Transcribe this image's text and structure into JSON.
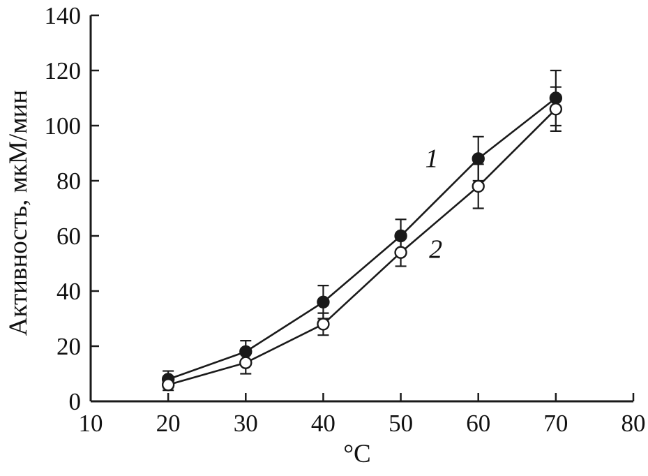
{
  "chart_data": {
    "type": "line",
    "title": "",
    "xlabel": "°C",
    "ylabel": "Активность, мкМ/мин",
    "xlim": [
      10,
      80
    ],
    "ylim": [
      0,
      140
    ],
    "xticks": [
      10,
      20,
      30,
      40,
      50,
      60,
      70,
      80
    ],
    "yticks": [
      0,
      20,
      40,
      60,
      80,
      100,
      120,
      140
    ],
    "grid": false,
    "legend_position": "none",
    "x": [
      20,
      30,
      40,
      50,
      60,
      70
    ],
    "series": [
      {
        "name": "1",
        "marker": "filled-circle",
        "values": [
          8,
          18,
          36,
          60,
          88,
          110
        ],
        "errors": [
          3,
          4,
          6,
          6,
          8,
          10
        ]
      },
      {
        "name": "2",
        "marker": "open-circle",
        "values": [
          6,
          14,
          28,
          54,
          78,
          106
        ],
        "errors": [
          2,
          4,
          4,
          5,
          8,
          8
        ]
      }
    ],
    "annotations": [
      {
        "text": "1",
        "x": 54,
        "y": 85
      },
      {
        "text": "2",
        "x": 54.5,
        "y": 52
      }
    ],
    "colors": {
      "line": "#1a1a1a",
      "background": "#ffffff"
    }
  }
}
